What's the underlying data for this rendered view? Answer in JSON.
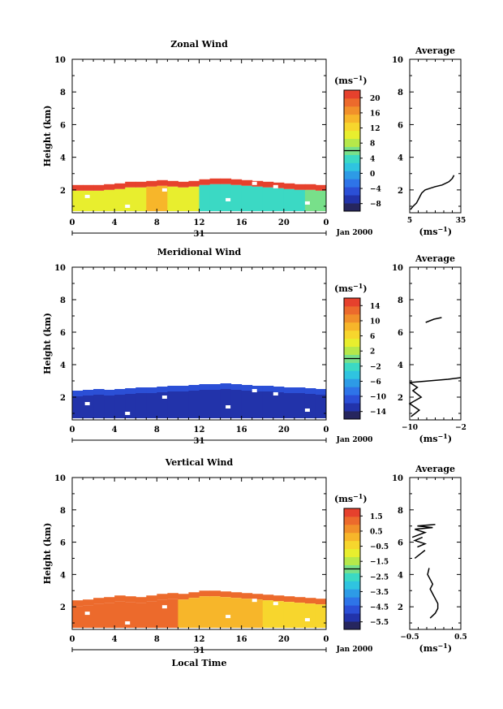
{
  "colors": {
    "zonal": [
      "#26265e",
      "#2233aa",
      "#2b4fd6",
      "#2e74e8",
      "#2d9be6",
      "#2fc4e0",
      "#3bd9c4",
      "#78e08a",
      "#b6e84a",
      "#e8ee2e",
      "#f7d62d",
      "#f7b62a",
      "#f1902a",
      "#ec6a2c",
      "#e6412d"
    ],
    "meridional": [
      "#26265e",
      "#2233aa",
      "#2b4fd6",
      "#2e74e8",
      "#2d9be6",
      "#2fc4e0",
      "#3bd9c4",
      "#78e08a",
      "#b6e84a",
      "#e8ee2e",
      "#f7d62d",
      "#f7b62a",
      "#f1902a",
      "#ec6a2c",
      "#e6412d"
    ],
    "vertical": [
      "#26265e",
      "#2233aa",
      "#2b4fd6",
      "#2e74e8",
      "#2d9be6",
      "#2fc4e0",
      "#3bd9c4",
      "#78e08a",
      "#b6e84a",
      "#e8ee2e",
      "#f7d62d",
      "#f7b62a",
      "#f1902a",
      "#ec6a2c",
      "#e6412d"
    ]
  },
  "chart_data": [
    {
      "type": "heatmap",
      "title": "Zonal Wind",
      "ylabel": "Height (km)",
      "xlabel": "",
      "xlim": [
        0,
        24
      ],
      "ylim": [
        0.6,
        10
      ],
      "xticks": [
        "0",
        "4",
        "8",
        "12",
        "16",
        "20",
        "0"
      ],
      "yticks": [
        "2",
        "4",
        "6",
        "8",
        "10"
      ],
      "date_label": "31",
      "month_label": "Jan 2000",
      "colorbar": {
        "unit": "(ms",
        "unit_exp": "−1",
        "unit_close": ")",
        "ticks": [
          "−8",
          "−4",
          "0",
          "4",
          "8",
          "12",
          "16",
          "20"
        ],
        "min": -10,
        "max": 22
      },
      "grid": {
        "x": [
          0,
          24
        ],
        "y": [
          0.7,
          2.7
        ],
        "fill_top_profile": [
          2.3,
          2.3,
          2.3,
          2.35,
          2.4,
          2.5,
          2.5,
          2.55,
          2.6,
          2.55,
          2.5,
          2.55,
          2.65,
          2.7,
          2.7,
          2.65,
          2.6,
          2.55,
          2.5,
          2.45,
          2.4,
          2.35,
          2.35,
          2.3
        ],
        "bottom_band": [
          {
            "x": [
              0,
              7
            ],
            "v": 10
          },
          {
            "x": [
              7,
              9
            ],
            "v": 14
          },
          {
            "x": [
              9,
              12
            ],
            "v": 11
          },
          {
            "x": [
              12,
              22
            ],
            "v": 4
          },
          {
            "x": [
              22,
              24
            ],
            "v": 6
          }
        ],
        "top_band_value": 21
      },
      "profile": {
        "title": "Average",
        "xlabel": "(ms",
        "xlabel_exp": "−1",
        "xlabel_close": ")",
        "xlim": [
          5,
          35
        ],
        "xticks": [
          "5",
          "35"
        ],
        "ylim": [
          0.6,
          10
        ],
        "yticks": [
          "2",
          "4",
          "6",
          "8",
          "10"
        ],
        "x": [
          5.5,
          7,
          9,
          10,
          11,
          12,
          14,
          17,
          20,
          24,
          28,
          30,
          31
        ],
        "y": [
          0.8,
          1.0,
          1.2,
          1.4,
          1.6,
          1.8,
          2.0,
          2.1,
          2.2,
          2.3,
          2.5,
          2.7,
          2.9
        ]
      }
    },
    {
      "type": "heatmap",
      "title": "Meridional Wind",
      "ylabel": "Height (km)",
      "xlabel": "",
      "xlim": [
        0,
        24
      ],
      "ylim": [
        0.6,
        10
      ],
      "xticks": [
        "0",
        "4",
        "8",
        "12",
        "16",
        "20",
        "0"
      ],
      "yticks": [
        "2",
        "4",
        "6",
        "8",
        "10"
      ],
      "date_label": "31",
      "month_label": "Jan 2000",
      "colorbar": {
        "unit": "(ms",
        "unit_exp": "−1",
        "unit_close": ")",
        "ticks": [
          "−14",
          "−10",
          "−6",
          "−2",
          "2",
          "6",
          "10",
          "14"
        ],
        "min": -16,
        "max": 16
      },
      "grid": {
        "x": [
          0,
          24
        ],
        "y": [
          0.7,
          2.7
        ],
        "fill_top_profile": [
          2.4,
          2.45,
          2.5,
          2.45,
          2.5,
          2.55,
          2.6,
          2.6,
          2.65,
          2.7,
          2.7,
          2.75,
          2.8,
          2.8,
          2.85,
          2.8,
          2.75,
          2.7,
          2.7,
          2.65,
          2.6,
          2.6,
          2.55,
          2.5
        ],
        "bottom_band": [
          {
            "x": [
              0,
              24
            ],
            "v": -12
          }
        ],
        "top_band_value": -11
      },
      "profile": {
        "title": "Average",
        "xlabel": "(ms",
        "xlabel_exp": "−1",
        "xlabel_close": ")",
        "xlim": [
          -10,
          -2
        ],
        "xticks": [
          "−10",
          "−2"
        ],
        "ylim": [
          0.6,
          10
        ],
        "yticks": [
          "2",
          "4",
          "6",
          "8",
          "10"
        ],
        "segments": [
          {
            "x": [
              -9.8,
              -8.5,
              -10.0,
              -8.2,
              -9.5,
              -8.8,
              -10.0
            ],
            "y": [
              0.8,
              1.2,
              1.6,
              2.0,
              2.4,
              2.6,
              2.9
            ]
          },
          {
            "x": [
              -10,
              -7,
              -4,
              -2
            ],
            "y": [
              2.9,
              3.0,
              3.1,
              3.2
            ]
          },
          {
            "x": [
              -7.5,
              -6.2,
              -5.0
            ],
            "y": [
              6.6,
              6.8,
              6.9
            ]
          }
        ]
      }
    },
    {
      "type": "heatmap",
      "title": "Vertical Wind",
      "ylabel": "Height (km)",
      "xlabel": "Local Time",
      "xlim": [
        0,
        24
      ],
      "ylim": [
        0.6,
        10
      ],
      "xticks": [
        "0",
        "4",
        "8",
        "12",
        "16",
        "20",
        "0"
      ],
      "yticks": [
        "2",
        "4",
        "6",
        "8",
        "10"
      ],
      "date_label": "31",
      "month_label": "Jan 2000",
      "colorbar": {
        "unit": "(ms",
        "unit_exp": "−1",
        "unit_close": ")",
        "ticks": [
          "−5.5",
          "−4.5",
          "−3.5",
          "−2.5",
          "−1.5",
          "−0.5",
          "0.5",
          "1.5"
        ],
        "min": -6,
        "max": 2
      },
      "grid": {
        "x": [
          0,
          24
        ],
        "y": [
          0.7,
          2.9
        ],
        "fill_top_profile": [
          2.4,
          2.45,
          2.55,
          2.6,
          2.7,
          2.65,
          2.6,
          2.7,
          2.8,
          2.85,
          2.8,
          2.9,
          3.0,
          3.0,
          2.95,
          2.9,
          2.85,
          2.8,
          2.75,
          2.7,
          2.65,
          2.6,
          2.55,
          2.5
        ],
        "bottom_band": [
          {
            "x": [
              0,
              10
            ],
            "v": 1.0
          },
          {
            "x": [
              10,
              18
            ],
            "v": 0.0
          },
          {
            "x": [
              18,
              24
            ],
            "v": -0.3
          }
        ],
        "top_band_value": 1.2
      },
      "profile": {
        "title": "Average",
        "xlabel": "(ms",
        "xlabel_exp": "−1",
        "xlabel_close": ")",
        "xlim": [
          -0.5,
          0.5
        ],
        "xticks": [
          "−0.5",
          "0.5"
        ],
        "ylim": [
          0.6,
          10
        ],
        "yticks": [
          "2",
          "4",
          "6",
          "8",
          "10"
        ],
        "segments": [
          {
            "x": [
              -0.1,
              0.0,
              0.05,
              0.05,
              0.0,
              -0.05,
              -0.1,
              -0.05,
              -0.1,
              -0.15,
              -0.12
            ],
            "y": [
              1.3,
              1.6,
              1.9,
              2.2,
              2.5,
              2.8,
              3.1,
              3.4,
              3.7,
              4.0,
              4.4
            ]
          },
          {
            "x": [
              -0.4,
              -0.2
            ],
            "y": [
              5.0,
              5.5
            ]
          },
          {
            "x": [
              -0.35,
              -0.2,
              -0.4,
              -0.25
            ],
            "y": [
              5.7,
              5.9,
              6.1,
              6.3
            ]
          },
          {
            "x": [
              -0.45,
              -0.2,
              -0.4,
              -0.05,
              -0.35,
              0.0
            ],
            "y": [
              6.3,
              6.6,
              6.8,
              6.9,
              7.0,
              7.1
            ]
          }
        ]
      }
    }
  ]
}
